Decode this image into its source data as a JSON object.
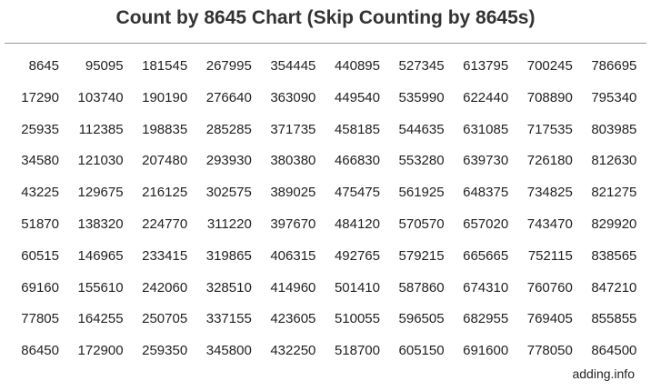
{
  "title": "Count by 8645 Chart (Skip Counting by 8645s)",
  "footer": "adding.info",
  "rows": [
    [
      "8645",
      "95095",
      "181545",
      "267995",
      "354445",
      "440895",
      "527345",
      "613795",
      "700245",
      "786695"
    ],
    [
      "17290",
      "103740",
      "190190",
      "276640",
      "363090",
      "449540",
      "535990",
      "622440",
      "708890",
      "795340"
    ],
    [
      "25935",
      "112385",
      "198835",
      "285285",
      "371735",
      "458185",
      "544635",
      "631085",
      "717535",
      "803985"
    ],
    [
      "34580",
      "121030",
      "207480",
      "293930",
      "380380",
      "466830",
      "553280",
      "639730",
      "726180",
      "812630"
    ],
    [
      "43225",
      "129675",
      "216125",
      "302575",
      "389025",
      "475475",
      "561925",
      "648375",
      "734825",
      "821275"
    ],
    [
      "51870",
      "138320",
      "224770",
      "311220",
      "397670",
      "484120",
      "570570",
      "657020",
      "743470",
      "829920"
    ],
    [
      "60515",
      "146965",
      "233415",
      "319865",
      "406315",
      "492765",
      "579215",
      "665665",
      "752115",
      "838565"
    ],
    [
      "69160",
      "155610",
      "242060",
      "328510",
      "414960",
      "501410",
      "587860",
      "674310",
      "760760",
      "847210"
    ],
    [
      "77805",
      "164255",
      "250705",
      "337155",
      "423605",
      "510055",
      "596505",
      "682955",
      "769405",
      "855855"
    ],
    [
      "86450",
      "172900",
      "259350",
      "345800",
      "432250",
      "518700",
      "605150",
      "691600",
      "778050",
      "864500"
    ]
  ]
}
